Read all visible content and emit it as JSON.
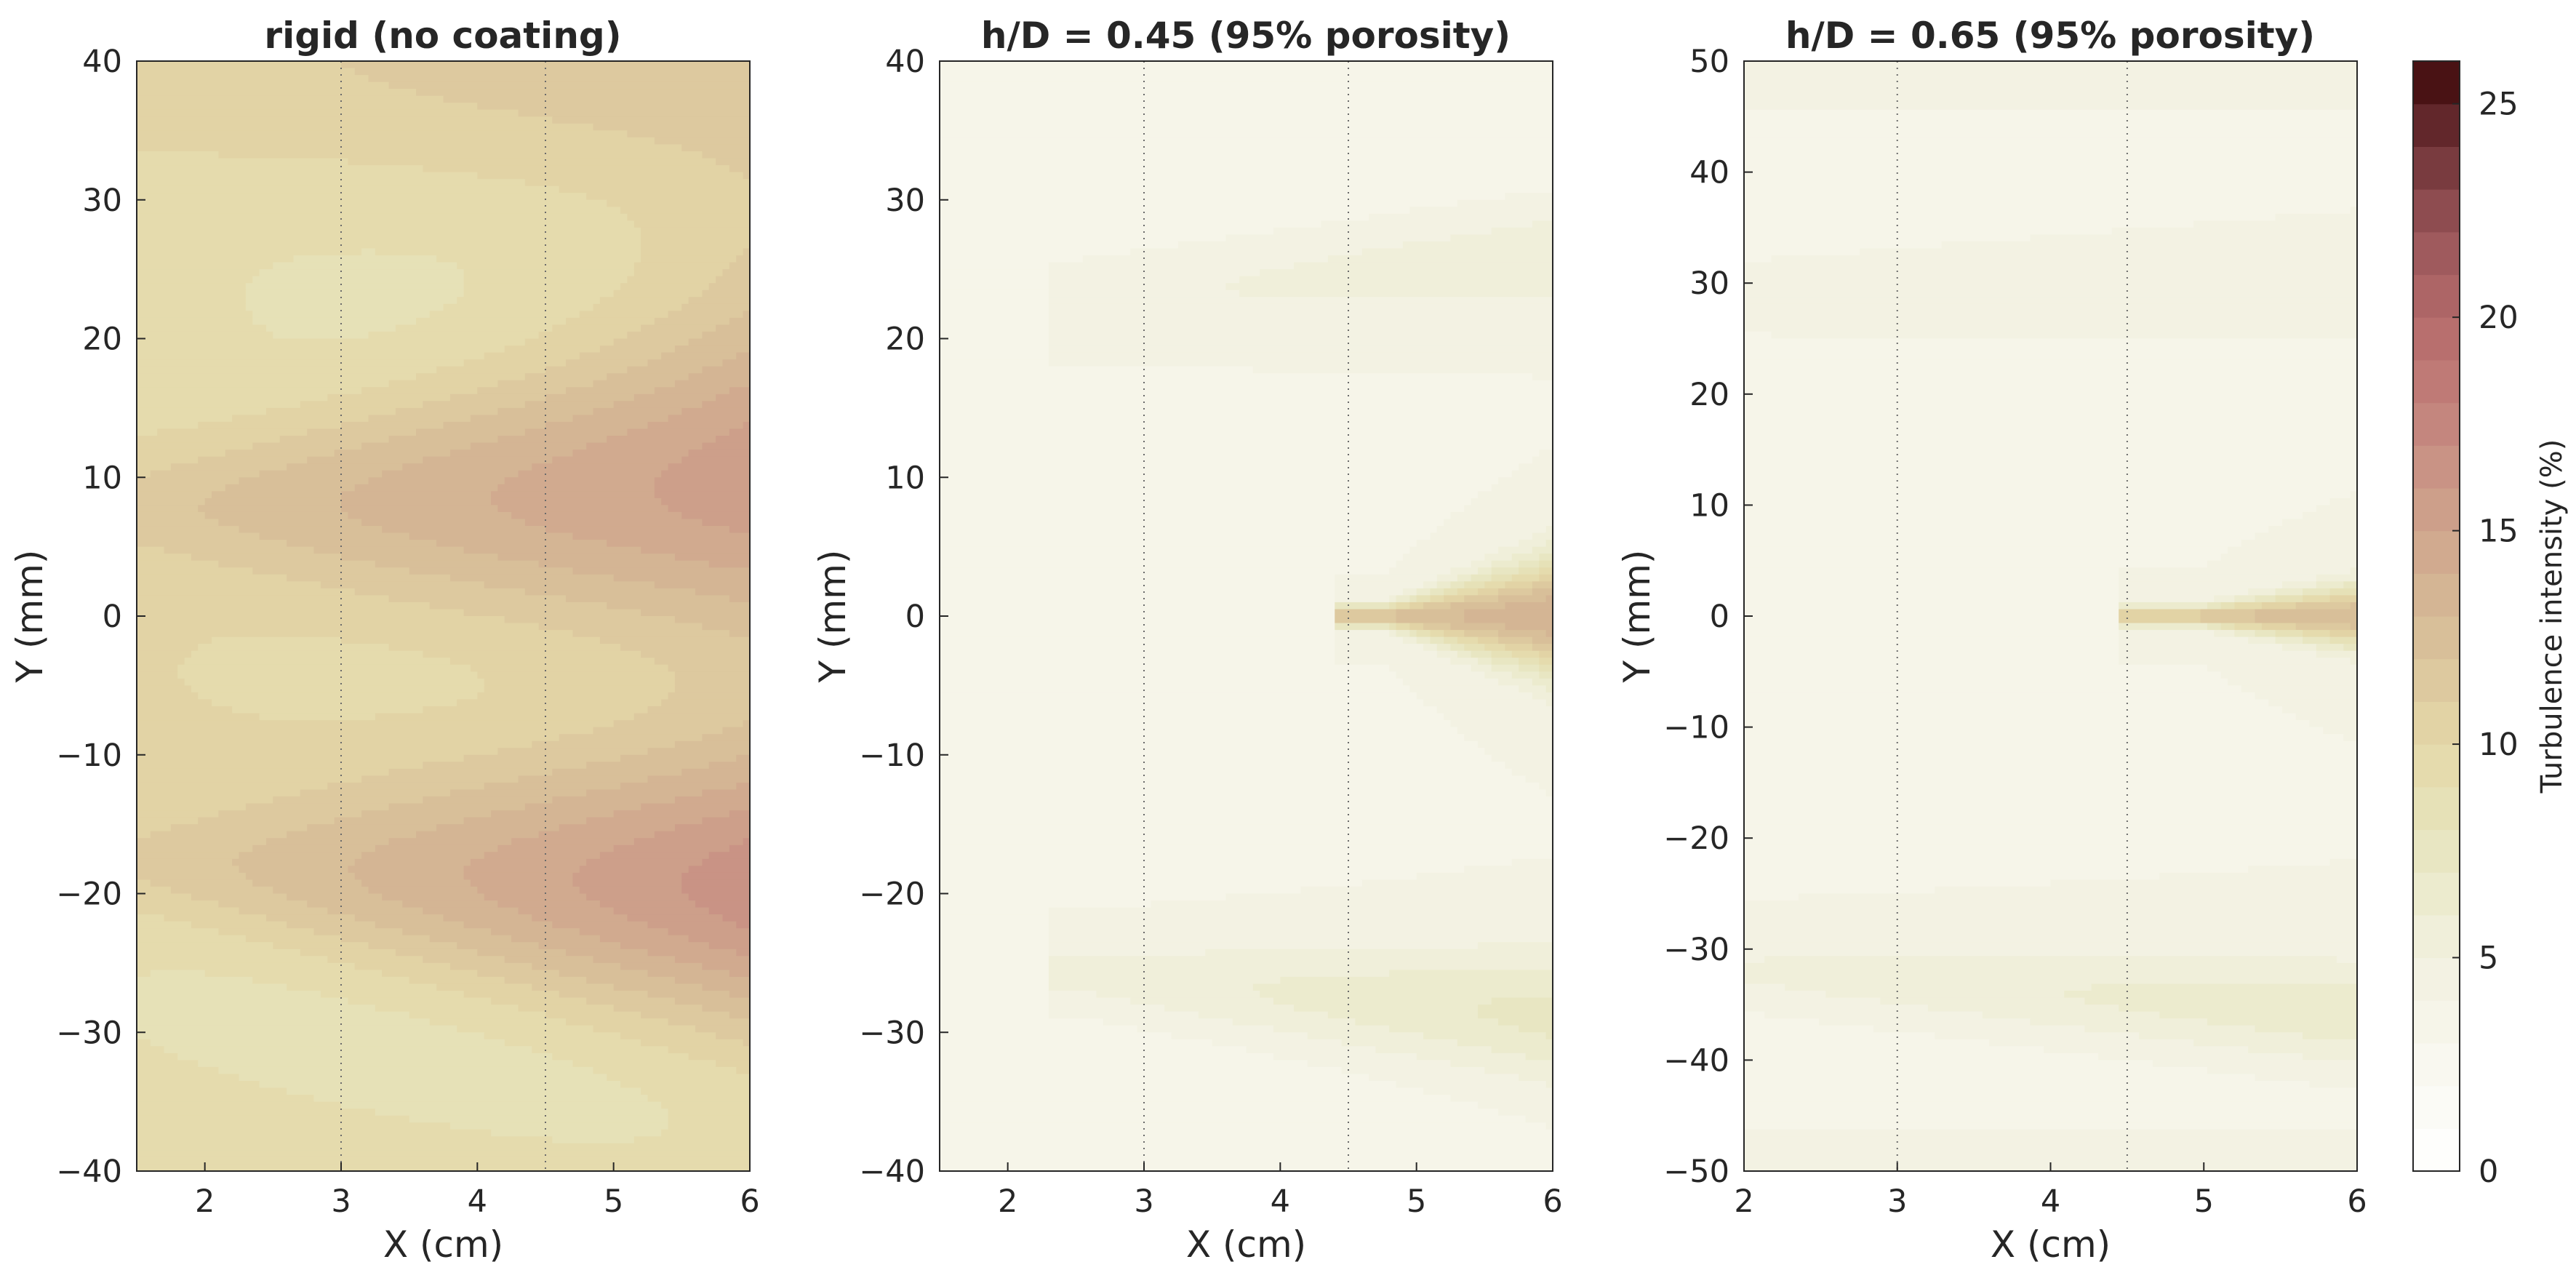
{
  "figure": {
    "colorbar": {
      "label": "Turbulence intensity (%)",
      "range": [
        0,
        26
      ],
      "ticks": [
        0,
        5,
        10,
        15,
        20,
        25
      ],
      "levels_per_unit": 1,
      "colors": [
        {
          "v": 0,
          "c": "#ffffff"
        },
        {
          "v": 5,
          "c": "#f2f1e0"
        },
        {
          "v": 8,
          "c": "#e6e4bc"
        },
        {
          "v": 10,
          "c": "#e4d8a8"
        },
        {
          "v": 13,
          "c": "#d6ba96"
        },
        {
          "v": 16,
          "c": "#cb9a88"
        },
        {
          "v": 18,
          "c": "#c27f7a"
        },
        {
          "v": 20,
          "c": "#b46a6a"
        },
        {
          "v": 22,
          "c": "#985459"
        },
        {
          "v": 24,
          "c": "#6e3236"
        },
        {
          "v": 26,
          "c": "#3d0708"
        }
      ]
    }
  },
  "chart_data": [
    {
      "type": "heatmap",
      "title": "rigid (no coating)",
      "xlabel": "X (cm)",
      "ylabel": "Y (mm)",
      "xlim": [
        1.5,
        6
      ],
      "ylim": [
        -40,
        40
      ],
      "xticks": [
        2,
        3,
        4,
        5,
        6
      ],
      "yticks": [
        -40,
        -30,
        -20,
        -10,
        0,
        10,
        20,
        30,
        40
      ],
      "vlines": [
        3,
        4.5,
        6
      ],
      "background": 11,
      "features": [
        {
          "x0": 1.5,
          "x1": 6,
          "y0": 26,
          "y1": 12,
          "v0": 3,
          "v1": 5,
          "w0": 14,
          "w1": 12,
          "v": -6
        },
        {
          "x0": 1.5,
          "x1": 6,
          "y0": -29,
          "y1": -32,
          "v0": 3,
          "v1": 5,
          "w0": 11,
          "w1": 9,
          "v": -7
        },
        {
          "x0": 1.5,
          "x1": 6,
          "y0": 8,
          "y1": 10,
          "v0": 1.2,
          "v1": 7,
          "w0": 2.5,
          "w1": 9,
          "v": 11
        },
        {
          "x0": 1.5,
          "x1": 6,
          "y0": -18,
          "y1": -21,
          "v0": 1.2,
          "v1": 6,
          "w0": 2.5,
          "w1": 8,
          "v": 12
        },
        {
          "x0": 1.5,
          "x1": 6,
          "y0": 38,
          "y1": 38,
          "v0": 3,
          "v1": 3,
          "w0": 5,
          "w1": 5,
          "v": 3
        },
        {
          "x0": 1.5,
          "x1": 6,
          "y0": -38,
          "y1": -38,
          "v0": 3,
          "v1": 3,
          "w0": 5,
          "w1": 5,
          "v": 1
        },
        {
          "x0": 1.5,
          "x1": 6,
          "y0": -4,
          "y1": -4,
          "v0": 3,
          "v1": 6,
          "w0": 5,
          "w1": 6,
          "v": -2
        }
      ]
    },
    {
      "type": "heatmap",
      "title": "h/D = 0.45 (95% porosity)",
      "xlabel": "X (cm)",
      "ylabel": "Y (mm)",
      "xlim": [
        1.5,
        6
      ],
      "ylim": [
        -40,
        40
      ],
      "xticks": [
        2,
        3,
        4,
        5,
        6
      ],
      "yticks": [
        -40,
        -30,
        -20,
        -10,
        0,
        10,
        20,
        30,
        40
      ],
      "vlines": [
        3,
        4.5,
        6
      ],
      "background": 4,
      "features": [
        {
          "x0": 1.5,
          "x1": 6,
          "y0": 32,
          "y1": 32,
          "v0": 1.5,
          "v1": 1.5,
          "w0": 6,
          "w1": 6,
          "v": -4
        },
        {
          "x0": 1.5,
          "x1": 6,
          "y0": -31,
          "y1": -31,
          "v0": 1.5,
          "v1": 1.5,
          "w0": 5,
          "w1": 5,
          "v": -4
        },
        {
          "x0": 2.5,
          "x1": 6,
          "y0": 23,
          "y1": 26,
          "v0": 1.2,
          "v1": 3,
          "w0": 2,
          "w1": 3,
          "v": 7
        },
        {
          "x0": 2.5,
          "x1": 6,
          "y0": -26,
          "y1": -29,
          "v0": 1.2,
          "v1": 3,
          "w0": 2,
          "w1": 3.5,
          "v": 13
        },
        {
          "x0": 4.5,
          "x1": 6,
          "y0": 0,
          "y1": 0,
          "v0": 20,
          "v1": 25,
          "w0": 0,
          "w1": 3,
          "v": 4
        }
      ]
    },
    {
      "type": "heatmap",
      "title": "h/D = 0.65 (95% porosity)",
      "xlabel": "X (cm)",
      "ylabel": "Y (mm)",
      "xlim": [
        2,
        6
      ],
      "ylim": [
        -50,
        50
      ],
      "xticks": [
        2,
        3,
        4,
        5,
        6
      ],
      "yticks": [
        -50,
        -40,
        -30,
        -20,
        -10,
        0,
        10,
        20,
        30,
        40,
        50
      ],
      "vlines": [
        3,
        4.5,
        6
      ],
      "background": 4,
      "features": [
        {
          "x0": 2,
          "x1": 6,
          "y0": 37,
          "y1": 37,
          "v0": 1.5,
          "v1": 1.5,
          "w0": 5,
          "w1": 5,
          "v": -4
        },
        {
          "x0": 2,
          "x1": 6,
          "y0": -43,
          "y1": -43,
          "v0": 1.5,
          "v1": 1.5,
          "w0": 6,
          "w1": 6,
          "v": -3
        },
        {
          "x0": 2,
          "x1": 6,
          "y0": 30,
          "y1": 33,
          "v0": 1.2,
          "v1": 2.5,
          "w0": 2,
          "w1": 3,
          "v": 5
        },
        {
          "x0": 2,
          "x1": 6,
          "y0": -32,
          "y1": -36,
          "v0": 1.2,
          "v1": 3,
          "w0": 2,
          "w1": 3.5,
          "v": 10
        },
        {
          "x0": 2,
          "x1": 6,
          "y0": 49,
          "y1": 49,
          "v0": 2,
          "v1": 2,
          "w0": 2,
          "w1": 2,
          "v": 4
        },
        {
          "x0": 2,
          "x1": 6,
          "y0": -49,
          "y1": -49,
          "v0": 2,
          "v1": 2,
          "w0": 2,
          "w1": 2,
          "v": 4
        },
        {
          "x0": 4.5,
          "x1": 6,
          "y0": 0,
          "y1": 0,
          "v0": 25,
          "v1": 30,
          "w0": 0,
          "w1": 2,
          "v": 3
        }
      ]
    }
  ]
}
